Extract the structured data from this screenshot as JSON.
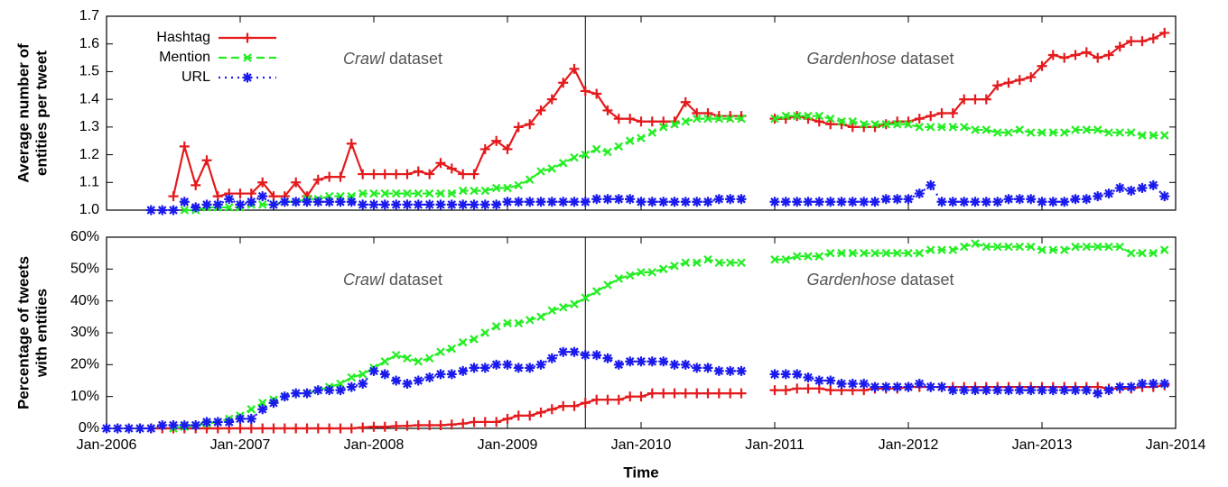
{
  "chart_data": [
    {
      "type": "line",
      "ylabel": [
        "Average number of",
        "entities per tweet"
      ],
      "annotations": [
        {
          "emph": "Crawl",
          "text": "dataset"
        },
        {
          "emph": "Gardenhose",
          "text": "dataset"
        }
      ],
      "divider_x": 2009.583,
      "legend": "upper left",
      "xtick_labels": false,
      "xlim": [
        2006,
        2014
      ],
      "xticks": [
        2006,
        2007,
        2008,
        2009,
        2010,
        2011,
        2012,
        2013,
        2014
      ],
      "ylim": [
        1,
        1.7
      ],
      "yticks": [
        {
          "value": 1,
          "label": "1.0"
        },
        1.1,
        1.2,
        1.3,
        1.4,
        1.5,
        1.6,
        1.7
      ],
      "x": [
        2006.0,
        2006.083,
        2006.167,
        2006.25,
        2006.333,
        2006.417,
        2006.5,
        2006.583,
        2006.667,
        2006.75,
        2006.833,
        2006.917,
        2007.0,
        2007.083,
        2007.167,
        2007.25,
        2007.333,
        2007.417,
        2007.5,
        2007.583,
        2007.667,
        2007.75,
        2007.833,
        2007.917,
        2008.0,
        2008.083,
        2008.167,
        2008.25,
        2008.333,
        2008.417,
        2008.5,
        2008.583,
        2008.667,
        2008.75,
        2008.833,
        2008.917,
        2009.0,
        2009.083,
        2009.167,
        2009.25,
        2009.333,
        2009.417,
        2009.5,
        2009.583,
        2009.667,
        2009.75,
        2009.833,
        2009.917,
        2010.0,
        2010.083,
        2010.167,
        2010.25,
        2010.333,
        2010.417,
        2010.5,
        2010.583,
        2010.667,
        2010.75,
        2010.833,
        2010.917,
        2011.0,
        2011.083,
        2011.167,
        2011.25,
        2011.333,
        2011.417,
        2011.5,
        2011.583,
        2011.667,
        2011.75,
        2011.833,
        2011.917,
        2012.0,
        2012.083,
        2012.167,
        2012.25,
        2012.333,
        2012.417,
        2012.5,
        2012.583,
        2012.667,
        2012.75,
        2012.833,
        2012.917,
        2013.0,
        2013.083,
        2013.167,
        2013.25,
        2013.333,
        2013.417,
        2013.5,
        2013.583,
        2013.667,
        2013.75,
        2013.833,
        2013.917
      ],
      "series": [
        {
          "name": "Hashtag",
          "color": "#e41a1c",
          "dash": "solid",
          "marker": "plus",
          "values": [
            null,
            null,
            null,
            null,
            null,
            null,
            1.05,
            1.23,
            1.09,
            1.18,
            1.05,
            1.06,
            1.06,
            1.06,
            1.1,
            1.05,
            1.05,
            1.1,
            1.05,
            1.11,
            1.12,
            1.12,
            1.24,
            1.13,
            1.13,
            1.13,
            1.13,
            1.13,
            1.14,
            1.13,
            1.17,
            1.15,
            1.13,
            1.13,
            1.22,
            1.25,
            1.22,
            1.3,
            1.31,
            1.36,
            1.4,
            1.46,
            1.51,
            1.43,
            1.42,
            1.36,
            1.33,
            1.33,
            1.32,
            1.32,
            1.32,
            1.32,
            1.39,
            1.35,
            1.35,
            1.34,
            1.34,
            1.34,
            null,
            null,
            1.33,
            1.33,
            1.34,
            1.33,
            1.32,
            1.31,
            1.31,
            1.3,
            1.3,
            1.3,
            1.31,
            1.32,
            1.32,
            1.33,
            1.34,
            1.35,
            1.35,
            1.4,
            1.4,
            1.4,
            1.45,
            1.46,
            1.47,
            1.48,
            1.52,
            1.56,
            1.55,
            1.56,
            1.57,
            1.55,
            1.56,
            1.59,
            1.61,
            1.61,
            1.62,
            1.64
          ]
        },
        {
          "name": "Mention",
          "color": "#22ee22",
          "dash": "dashed",
          "marker": "cross",
          "values": [
            null,
            null,
            null,
            null,
            null,
            null,
            null,
            1.0,
            1.0,
            1.01,
            1.01,
            1.01,
            1.01,
            1.02,
            1.02,
            1.02,
            1.03,
            1.03,
            1.04,
            1.04,
            1.05,
            1.05,
            1.05,
            1.06,
            1.06,
            1.06,
            1.06,
            1.06,
            1.06,
            1.06,
            1.06,
            1.06,
            1.07,
            1.07,
            1.07,
            1.08,
            1.08,
            1.09,
            1.11,
            1.14,
            1.15,
            1.17,
            1.19,
            1.2,
            1.22,
            1.21,
            1.23,
            1.25,
            1.26,
            1.28,
            1.3,
            1.31,
            1.32,
            1.33,
            1.33,
            1.33,
            1.33,
            1.33,
            null,
            null,
            1.33,
            1.34,
            1.34,
            1.34,
            1.34,
            1.33,
            1.32,
            1.32,
            1.31,
            1.31,
            1.31,
            1.31,
            1.31,
            1.3,
            1.3,
            1.3,
            1.3,
            1.3,
            1.29,
            1.29,
            1.28,
            1.28,
            1.29,
            1.28,
            1.28,
            1.28,
            1.28,
            1.29,
            1.29,
            1.29,
            1.28,
            1.28,
            1.28,
            1.27,
            1.27,
            1.27
          ]
        },
        {
          "name": "URL",
          "color": "#1a1aee",
          "dash": "dotted",
          "marker": "star",
          "values": [
            null,
            null,
            null,
            null,
            1.0,
            1.0,
            1.0,
            1.03,
            1.01,
            1.02,
            1.02,
            1.04,
            1.02,
            1.03,
            1.05,
            1.02,
            1.03,
            1.03,
            1.03,
            1.03,
            1.03,
            1.03,
            1.03,
            1.02,
            1.02,
            1.02,
            1.02,
            1.02,
            1.02,
            1.02,
            1.02,
            1.02,
            1.02,
            1.02,
            1.02,
            1.02,
            1.03,
            1.03,
            1.03,
            1.03,
            1.03,
            1.03,
            1.03,
            1.03,
            1.04,
            1.04,
            1.04,
            1.04,
            1.03,
            1.03,
            1.03,
            1.03,
            1.03,
            1.03,
            1.03,
            1.04,
            1.04,
            1.04,
            null,
            null,
            1.03,
            1.03,
            1.03,
            1.03,
            1.03,
            1.03,
            1.03,
            1.03,
            1.03,
            1.03,
            1.04,
            1.04,
            1.04,
            1.06,
            1.09,
            1.03,
            1.03,
            1.03,
            1.03,
            1.03,
            1.03,
            1.04,
            1.04,
            1.04,
            1.03,
            1.03,
            1.03,
            1.04,
            1.04,
            1.05,
            1.06,
            1.08,
            1.07,
            1.08,
            1.09,
            1.05
          ]
        }
      ]
    },
    {
      "type": "line",
      "ylabel": [
        "Percentage of tweets",
        "with entities"
      ],
      "xlabel": "Time",
      "annotations": [
        {
          "emph": "Crawl",
          "text": "dataset"
        },
        {
          "emph": "Gardenhose",
          "text": "dataset"
        }
      ],
      "divider_x": 2009.583,
      "xtick_labels": true,
      "xlim": [
        2006,
        2014
      ],
      "xticks": [
        {
          "value": 2006,
          "label": "Jan-2006"
        },
        {
          "value": 2007,
          "label": "Jan-2007"
        },
        {
          "value": 2008,
          "label": "Jan-2008"
        },
        {
          "value": 2009,
          "label": "Jan-2009"
        },
        {
          "value": 2010,
          "label": "Jan-2010"
        },
        {
          "value": 2011,
          "label": "Jan-2011"
        },
        {
          "value": 2012,
          "label": "Jan-2012"
        },
        {
          "value": 2013,
          "label": "Jan-2013"
        },
        {
          "value": 2014,
          "label": "Jan-2014"
        }
      ],
      "ylim": [
        0,
        60
      ],
      "yticks": [
        {
          "value": 0,
          "label": "0%"
        },
        {
          "value": 10,
          "label": "10%"
        },
        {
          "value": 20,
          "label": "20%"
        },
        {
          "value": 30,
          "label": "30%"
        },
        {
          "value": 40,
          "label": "40%"
        },
        {
          "value": 50,
          "label": "50%"
        },
        {
          "value": 60,
          "label": "60%"
        }
      ],
      "x": [
        2006.0,
        2006.083,
        2006.167,
        2006.25,
        2006.333,
        2006.417,
        2006.5,
        2006.583,
        2006.667,
        2006.75,
        2006.833,
        2006.917,
        2007.0,
        2007.083,
        2007.167,
        2007.25,
        2007.333,
        2007.417,
        2007.5,
        2007.583,
        2007.667,
        2007.75,
        2007.833,
        2007.917,
        2008.0,
        2008.083,
        2008.167,
        2008.25,
        2008.333,
        2008.417,
        2008.5,
        2008.583,
        2008.667,
        2008.75,
        2008.833,
        2008.917,
        2009.0,
        2009.083,
        2009.167,
        2009.25,
        2009.333,
        2009.417,
        2009.5,
        2009.583,
        2009.667,
        2009.75,
        2009.833,
        2009.917,
        2010.0,
        2010.083,
        2010.167,
        2010.25,
        2010.333,
        2010.417,
        2010.5,
        2010.583,
        2010.667,
        2010.75,
        2010.833,
        2010.917,
        2011.0,
        2011.083,
        2011.167,
        2011.25,
        2011.333,
        2011.417,
        2011.5,
        2011.583,
        2011.667,
        2011.75,
        2011.833,
        2011.917,
        2012.0,
        2012.083,
        2012.167,
        2012.25,
        2012.333,
        2012.417,
        2012.5,
        2012.583,
        2012.667,
        2012.75,
        2012.833,
        2012.917,
        2013.0,
        2013.083,
        2013.167,
        2013.25,
        2013.333,
        2013.417,
        2013.5,
        2013.583,
        2013.667,
        2013.75,
        2013.833,
        2013.917
      ],
      "series": [
        {
          "color": "#e41a1c",
          "dash": "solid",
          "marker": "plus",
          "values": [
            null,
            null,
            null,
            null,
            0,
            0,
            0,
            0,
            0,
            0,
            0,
            0,
            0,
            0,
            0,
            0,
            0,
            0,
            0,
            0,
            0,
            0,
            0,
            0.3,
            0.5,
            0.5,
            0.7,
            0.8,
            1,
            1,
            1,
            1.2,
            1.5,
            2,
            2,
            2,
            3,
            4,
            4,
            5,
            6,
            7,
            7,
            8,
            9,
            9,
            9,
            10,
            10,
            11,
            11,
            11,
            11,
            11,
            11,
            11,
            11,
            11,
            null,
            null,
            12,
            12,
            12.5,
            12.5,
            12.5,
            12,
            12,
            12,
            12,
            12.5,
            12.5,
            12.5,
            13,
            13,
            13,
            13,
            13,
            13,
            13,
            13,
            13,
            13,
            13,
            13,
            13,
            13,
            13,
            13,
            13,
            13,
            12.5,
            12.5,
            12.5,
            13,
            13,
            13.5
          ]
        },
        {
          "color": "#22ee22",
          "dash": "dashed",
          "marker": "cross",
          "values": [
            null,
            null,
            null,
            null,
            null,
            null,
            0,
            0.5,
            1,
            1.5,
            2,
            3,
            4,
            6,
            8,
            9,
            10,
            11,
            11,
            12,
            13,
            14,
            16,
            17,
            19,
            21,
            23,
            22,
            21,
            22,
            24,
            25,
            27,
            28,
            30,
            32,
            33,
            33,
            34,
            35,
            37,
            38,
            39,
            41,
            43,
            45,
            47,
            48,
            49,
            49,
            50,
            51,
            52,
            52,
            53,
            52,
            52,
            52,
            null,
            null,
            53,
            53,
            54,
            54,
            54,
            55,
            55,
            55,
            55,
            55,
            55,
            55,
            55,
            55,
            56,
            56,
            56,
            57,
            58,
            57,
            57,
            57,
            57,
            57,
            56,
            56,
            56,
            57,
            57,
            57,
            57,
            57,
            55,
            55,
            55,
            56
          ]
        },
        {
          "color": "#1a1aee",
          "dash": "dotted",
          "marker": "star",
          "values": [
            0,
            0,
            0,
            0,
            0,
            1,
            1,
            1,
            1,
            2,
            2,
            2,
            3,
            3,
            6,
            8,
            10,
            11,
            11,
            12,
            12,
            12,
            13,
            14,
            18,
            17,
            15,
            14,
            15,
            16,
            17,
            17,
            18,
            19,
            19,
            20,
            20,
            19,
            19,
            20,
            22,
            24,
            24,
            23,
            23,
            22,
            20,
            21,
            21,
            21,
            21,
            20,
            20,
            19,
            19,
            18,
            18,
            18,
            null,
            null,
            17,
            17,
            17,
            16,
            15,
            15,
            14,
            14,
            14,
            13,
            13,
            13,
            13,
            14,
            13,
            13,
            12,
            12,
            12,
            12,
            12,
            12,
            12,
            12,
            12,
            12,
            12,
            12,
            12,
            11,
            12,
            13,
            13,
            14,
            14,
            14
          ]
        }
      ]
    }
  ]
}
